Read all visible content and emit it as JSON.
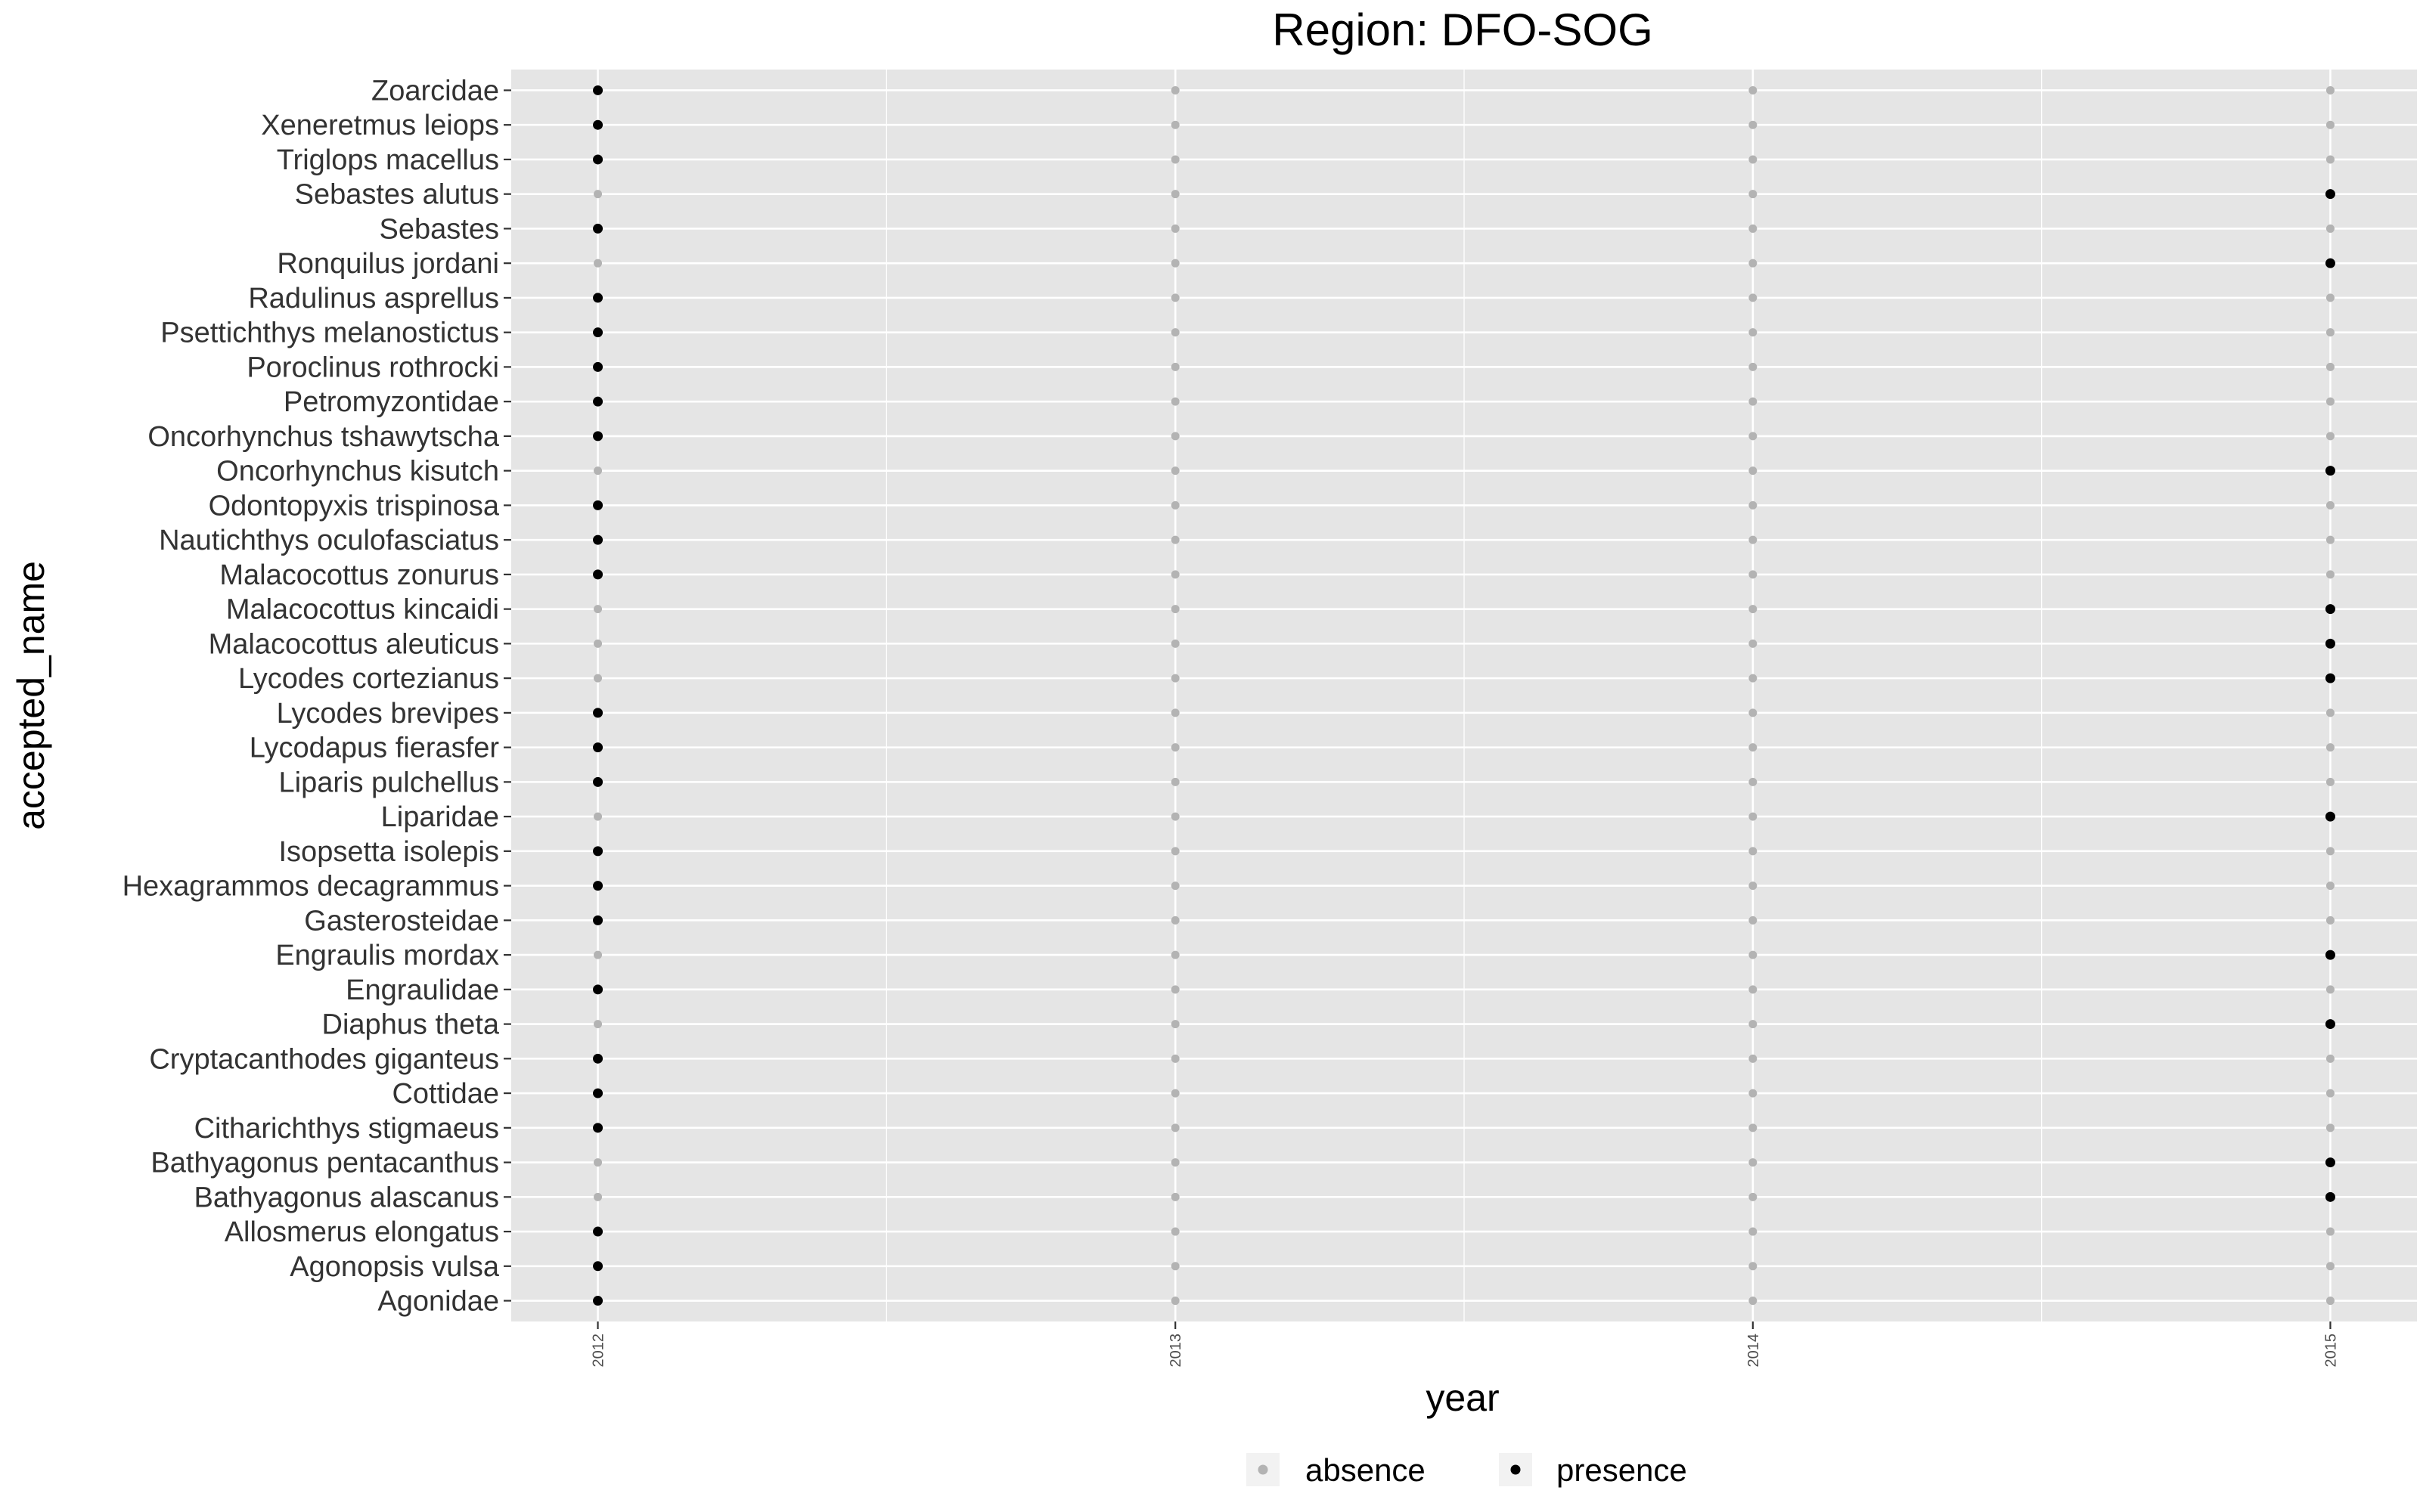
{
  "chart_data": {
    "type": "scatter",
    "title": "Region: DFO-SOG",
    "xlabel": "year",
    "ylabel": "accepted_name",
    "x": [
      2012,
      2013,
      2014,
      2015
    ],
    "xlim": [
      2011.85,
      2015.15
    ],
    "categories": [
      "Agonidae",
      "Agonopsis vulsa",
      "Allosmerus elongatus",
      "Bathyagonus alascanus",
      "Bathyagonus pentacanthus",
      "Citharichthys stigmaeus",
      "Cottidae",
      "Cryptacanthodes giganteus",
      "Diaphus theta",
      "Engraulidae",
      "Engraulis mordax",
      "Gasterosteidae",
      "Hexagrammos decagrammus",
      "Isopsetta isolepis",
      "Liparidae",
      "Liparis pulchellus",
      "Lycodapus fierasfer",
      "Lycodes brevipes",
      "Lycodes cortezianus",
      "Malacocottus aleuticus",
      "Malacocottus kincaidi",
      "Malacocottus zonurus",
      "Nautichthys oculofasciatus",
      "Odontopyxis trispinosa",
      "Oncorhynchus kisutch",
      "Oncorhynchus tshawytscha",
      "Petromyzontidae",
      "Poroclinus rothrocki",
      "Psettichthys melanostictus",
      "Radulinus asprellus",
      "Ronquilus jordani",
      "Sebastes",
      "Sebastes alutus",
      "Triglops macellus",
      "Xeneretmus leiops",
      "Zoarcidae"
    ],
    "presence_year": [
      2012,
      2012,
      2012,
      2015,
      2015,
      2012,
      2012,
      2012,
      2015,
      2012,
      2015,
      2012,
      2012,
      2012,
      2015,
      2012,
      2012,
      2012,
      2015,
      2015,
      2015,
      2012,
      2012,
      2012,
      2015,
      2012,
      2012,
      2012,
      2012,
      2012,
      2015,
      2012,
      2015,
      2012,
      2012,
      2012
    ],
    "series": [
      {
        "name": "absence",
        "color": "#b3b3b3"
      },
      {
        "name": "presence",
        "color": "#000000"
      }
    ],
    "grid": true,
    "panel_background": "#e5e5e5",
    "grid_color": "#ffffff",
    "legend_position": "bottom"
  }
}
